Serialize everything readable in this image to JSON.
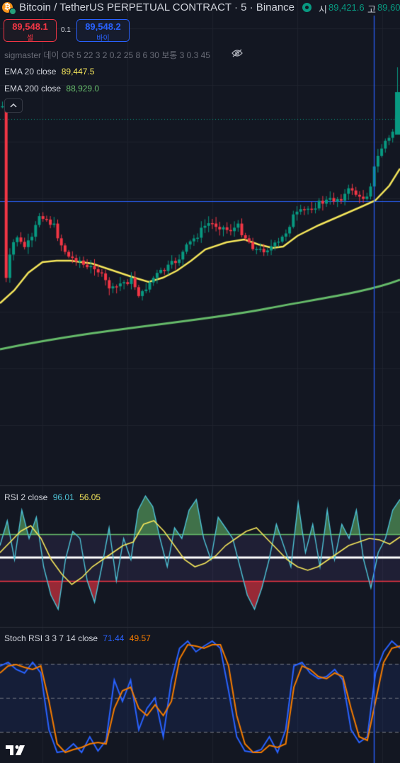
{
  "header": {
    "title": "Bitcoin / TetherUS PERPETUAL CONTRACT · 5 · Binance",
    "open_label": "시",
    "open_value": "89,421.6",
    "high_label": "고",
    "high_value": "89,60"
  },
  "trade": {
    "sell_price": "89,548.1",
    "sell_label": "셀",
    "spread": "0.1",
    "buy_price": "89,548.2",
    "buy_label": "바이"
  },
  "indicators": {
    "sigmaster": "sigmaster 데이 OR 5 22 3 2 0.2 25 8 6 30 보통 3 0.3 45",
    "ema20_label": "EMA 20 close",
    "ema20_value": "89,447.5",
    "ema200_label": "EMA 200 close",
    "ema200_value": "88,929.0"
  },
  "rsi": {
    "label": "RSI 2 close",
    "value1": "96.01",
    "value2": "56.05"
  },
  "stoch": {
    "label": "Stoch RSI 3 3 7 14 close",
    "k_value": "71.44",
    "d_value": "49.57"
  },
  "colors": {
    "background": "#131722",
    "up": "#089981",
    "down": "#f23645",
    "ema20": "#f5e65b",
    "ema200": "#66bb6a",
    "rsi": "#4ec3d6",
    "rsi_ma": "#f5e65b",
    "stoch_k": "#2962ff",
    "stoch_d": "#f57c00",
    "crosshair": "#2962ff"
  },
  "icons": {
    "visibility": "eye-slash-icon",
    "collapse": "chevron-up-icon",
    "brand": "tradingview-logo-icon"
  }
}
